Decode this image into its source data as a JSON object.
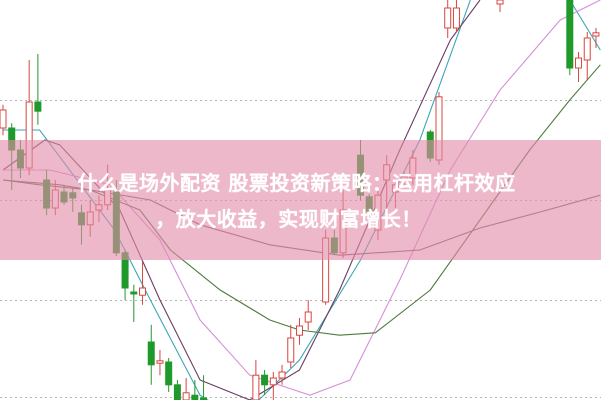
{
  "title": {
    "line1": "什么是场外配资 股票投资新策略：运用杠杆效应",
    "line2": "，放大收益，实现财富增长！"
  },
  "colors": {
    "up": "#d9443f",
    "down": "#1f9a2a",
    "grid": "#b5b5b5",
    "banner": "#e28ca8",
    "ma5": "#3aa6b8",
    "ma10": "#6b3b63",
    "ma20": "#d890d8",
    "ma30": "#4e7a3e",
    "ma60": "#7a5a78"
  },
  "chart_data": {
    "type": "candlestick",
    "grid": true,
    "ylim": [
      0,
      100
    ],
    "xlim": [
      0,
      68.5
    ],
    "gridlines": [
      25,
      50,
      75
    ],
    "candles": [
      [
        0,
        68,
        73.8,
        66.2,
        72.5
      ],
      [
        1,
        68,
        69.2,
        52.5,
        62.5
      ],
      [
        2,
        62.5,
        65,
        55.5,
        58
      ],
      [
        3,
        58,
        85,
        56.2,
        74.5
      ],
      [
        4,
        74.5,
        86.5,
        68.8,
        72.2
      ],
      [
        5,
        55,
        57.5,
        46.2,
        48
      ],
      [
        6,
        48,
        55,
        46.2,
        52.5
      ],
      [
        7,
        52,
        53.8,
        48.8,
        49.5
      ],
      [
        8,
        51.8,
        53,
        47,
        50.5
      ],
      [
        9,
        46.8,
        48.8,
        38.8,
        43.8
      ],
      [
        10,
        43.8,
        50,
        40.8,
        47
      ],
      [
        11,
        47.5,
        51.2,
        44.5,
        48.8
      ],
      [
        12,
        48.8,
        58.8,
        47.5,
        52.5
      ],
      [
        13,
        52,
        55,
        36,
        36.8
      ],
      [
        14,
        36.8,
        37.5,
        25,
        28
      ],
      [
        15,
        27,
        28.8,
        19.5,
        26.5
      ],
      [
        16,
        26.2,
        34.5,
        23.8,
        28
      ],
      [
        17,
        14.5,
        18.8,
        3.8,
        8.8
      ],
      [
        18,
        9.2,
        12.5,
        6.2,
        9.8
      ],
      [
        19,
        9.5,
        10.5,
        2,
        3.8
      ],
      [
        20,
        3.8,
        5,
        0,
        0
      ],
      [
        21,
        0,
        5.5,
        0,
        1.8
      ],
      [
        22,
        1.2,
        5,
        0,
        0
      ],
      [
        23,
        0.5,
        6.2,
        0,
        0
      ],
      [
        29,
        0,
        10,
        0,
        6.2
      ],
      [
        30,
        6.2,
        7.5,
        1.2,
        3.8
      ],
      [
        31,
        3.8,
        7,
        0,
        5.5
      ],
      [
        32,
        5.5,
        8.8,
        3.8,
        7
      ],
      [
        33,
        9.5,
        18.8,
        8,
        15.5
      ],
      [
        34,
        16.2,
        20.5,
        13.8,
        18.5
      ],
      [
        35,
        19.5,
        25,
        17.5,
        22
      ],
      [
        37,
        24.5,
        42.5,
        23.8,
        40.5
      ],
      [
        38,
        40.5,
        42.5,
        36.2,
        36.8
      ],
      [
        39,
        36.8,
        52.5,
        35.5,
        47.5
      ],
      [
        41,
        61.2,
        65,
        50,
        51.2
      ],
      [
        42,
        50.8,
        51.5,
        45,
        47
      ],
      [
        43,
        42.5,
        52.5,
        40,
        51.2
      ],
      [
        44,
        55,
        61.2,
        47.5,
        58.8
      ],
      [
        45,
        52,
        55,
        48,
        53.8
      ],
      [
        46,
        55.2,
        57,
        53,
        55.8
      ],
      [
        47,
        55.5,
        62.5,
        53.8,
        60.5
      ],
      [
        49,
        67,
        67.5,
        59.5,
        60.5
      ],
      [
        50,
        60,
        77,
        58.8,
        75.8
      ],
      [
        51,
        93,
        100,
        90.5,
        98
      ],
      [
        52,
        93,
        100,
        92,
        98
      ],
      [
        57,
        99,
        100,
        97,
        100
      ],
      [
        65,
        100,
        100,
        81.2,
        83
      ],
      [
        66,
        83,
        87,
        79.5,
        85.5
      ],
      [
        67,
        85,
        92,
        80,
        90.5
      ],
      [
        68,
        91,
        93,
        88,
        91.8
      ]
    ],
    "series": [
      {
        "color": "#3aa6b8",
        "points": [
          [
            0,
            67.5
          ],
          [
            4.2,
            67.5
          ],
          [
            12.8,
            42.5
          ],
          [
            16.9,
            25
          ],
          [
            22.6,
            1.2
          ],
          [
            27,
            -5
          ],
          [
            34,
            10
          ],
          [
            41,
            35
          ],
          [
            47.8,
            65
          ],
          [
            53.6,
            100
          ]
        ]
      },
      {
        "color": "#3aa6b8",
        "points": [
          [
            65,
            100
          ],
          [
            68.5,
            87.5
          ]
        ]
      },
      {
        "color": "#6b3b63",
        "points": [
          [
            0,
            57.5
          ],
          [
            4.8,
            65
          ],
          [
            6.5,
            63.8
          ],
          [
            13.4,
            47.5
          ],
          [
            18,
            25
          ],
          [
            22.6,
            5
          ],
          [
            28.3,
            0
          ],
          [
            34,
            7.5
          ],
          [
            38.6,
            27.5
          ],
          [
            45.5,
            62.5
          ],
          [
            51.3,
            90
          ],
          [
            54.7,
            100
          ]
        ]
      },
      {
        "color": "#d890d8",
        "points": [
          [
            0,
            57.5
          ],
          [
            5.4,
            57.5
          ],
          [
            12.3,
            53.8
          ],
          [
            18,
            40
          ],
          [
            22.6,
            20
          ],
          [
            28.3,
            6.2
          ],
          [
            35.2,
            1.2
          ],
          [
            39.8,
            5
          ],
          [
            45.5,
            30
          ],
          [
            51.3,
            57.5
          ],
          [
            57,
            77.5
          ],
          [
            63.9,
            95
          ],
          [
            68.5,
            100
          ]
        ]
      },
      {
        "color": "#4e7a3e",
        "points": [
          [
            0,
            55
          ],
          [
            4.2,
            53.8
          ],
          [
            10,
            52.5
          ],
          [
            15.7,
            47.5
          ],
          [
            19.2,
            37.5
          ],
          [
            24.9,
            27.5
          ],
          [
            30.6,
            20
          ],
          [
            34,
            17.5
          ],
          [
            38.6,
            16.2
          ],
          [
            42.7,
            16.8
          ],
          [
            49,
            27.5
          ],
          [
            54.7,
            45
          ],
          [
            60.4,
            62.5
          ],
          [
            65,
            75
          ],
          [
            68.5,
            83.8
          ]
        ]
      },
      {
        "color": "#7a5a78",
        "points": [
          [
            0,
            55
          ],
          [
            6.5,
            53.8
          ],
          [
            16.9,
            50
          ],
          [
            22.6,
            43.8
          ],
          [
            30.6,
            38.8
          ],
          [
            38.6,
            36.2
          ],
          [
            47.8,
            37.5
          ],
          [
            54.7,
            43
          ],
          [
            61.6,
            47
          ],
          [
            68.5,
            51.2
          ]
        ]
      }
    ]
  }
}
